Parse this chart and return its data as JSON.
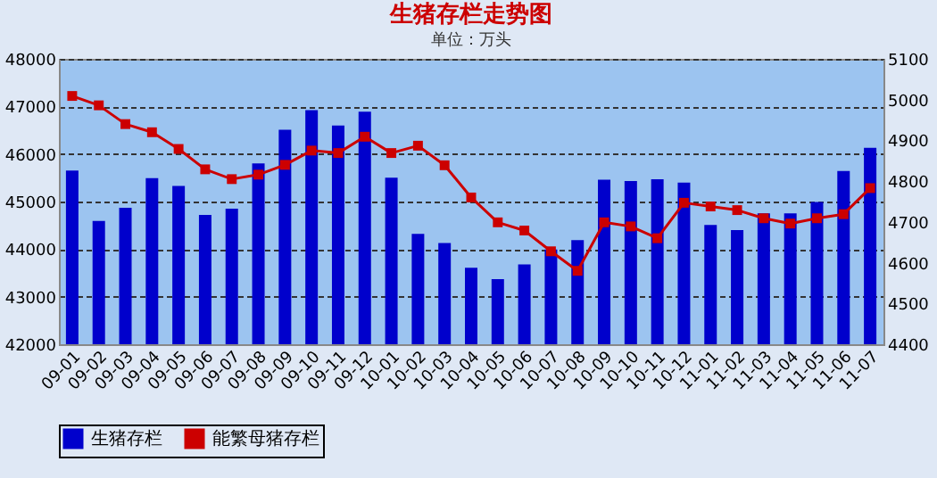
{
  "chart_data": {
    "type": "bar",
    "title": "生猪存栏走势图",
    "subtitle": "单位：万头",
    "categories": [
      "09-01",
      "09-02",
      "09-03",
      "09-04",
      "09-05",
      "09-06",
      "09-07",
      "09-08",
      "09-09",
      "09-10",
      "09-11",
      "09-12",
      "10-01",
      "10-02",
      "10-03",
      "10-04",
      "10-05",
      "10-06",
      "10-07",
      "10-08",
      "10-09",
      "10-10",
      "10-11",
      "10-12",
      "11-01",
      "11-02",
      "11-03",
      "11-04",
      "11-05",
      "11-06",
      "11-07"
    ],
    "series": [
      {
        "name": "生猪存栏",
        "color": "#0000cc",
        "values": [
          45650,
          44590,
          44870,
          45490,
          45330,
          44720,
          44850,
          45800,
          46510,
          46920,
          46600,
          46890,
          45500,
          44320,
          44130,
          43610,
          43370,
          43680,
          43990,
          44190,
          45460,
          45430,
          45470,
          45400,
          44510,
          44400,
          44750,
          44750,
          44990,
          45640,
          46130
        ]
      },
      {
        "name": "能繁母猪存栏",
        "type": "line",
        "axis": "y2",
        "color": "#cc0000",
        "marker": "square",
        "values": [
          5009,
          4986,
          4940,
          4920,
          4879,
          4829,
          4805,
          4816,
          4840,
          4875,
          4869,
          4909,
          4869,
          4887,
          4839,
          4760,
          4699,
          4679,
          4628,
          4580,
          4699,
          4689,
          4660,
          4747,
          4738,
          4729,
          4709,
          4696,
          4709,
          4719,
          4783
        ]
      }
    ],
    "ylim": [
      42000,
      48000
    ],
    "yticks": [
      42000,
      43000,
      44000,
      45000,
      46000,
      47000,
      48000
    ],
    "y2lim": [
      4400,
      5100
    ],
    "y2ticks": [
      4400,
      4500,
      4600,
      4700,
      4800,
      4900,
      5000,
      5100
    ],
    "grid": "y",
    "legend": "bottom"
  }
}
